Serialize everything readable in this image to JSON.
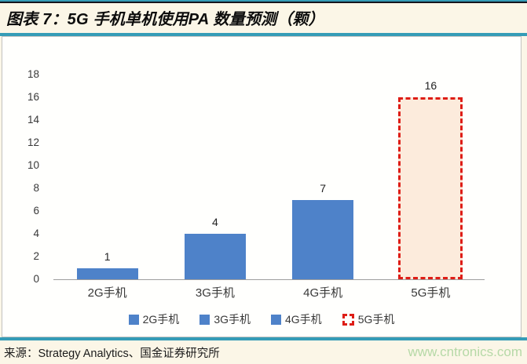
{
  "header": {
    "title": "图表 7：5G 手机单机使用PA 数量预测（颗）"
  },
  "chart_data": {
    "type": "bar",
    "title": "5G 手机单机使用PA 数量预测（颗）",
    "categories": [
      "2G手机",
      "3G手机",
      "4G手机",
      "5G手机"
    ],
    "values": [
      1,
      4,
      7,
      16
    ],
    "value_labels": [
      "1",
      "4",
      "7",
      "16"
    ],
    "yticks": [
      0,
      2,
      4,
      6,
      8,
      10,
      12,
      14,
      16,
      18
    ],
    "ylim": [
      0,
      18
    ],
    "grid": false,
    "legend": [
      "2G手机",
      "3G手机",
      "4G手机",
      "5G手机"
    ],
    "legend_position": "bottom",
    "highlight_index": 3,
    "xlabel": "",
    "ylabel": ""
  },
  "colors": {
    "bar_blue": "#4e82c9",
    "highlight_fill": "#fcebdc",
    "highlight_border": "#de1d16",
    "teal_rule": "#359cb7",
    "background": "#fbf6e7",
    "axis_line": "#9d9d9d",
    "watermark_green": "#b6d9a7",
    "title_text": "#0d0d0d"
  },
  "footer": {
    "source": "来源：Strategy Analytics、国金证券研究所",
    "watermark": "www.cntronics.com"
  }
}
